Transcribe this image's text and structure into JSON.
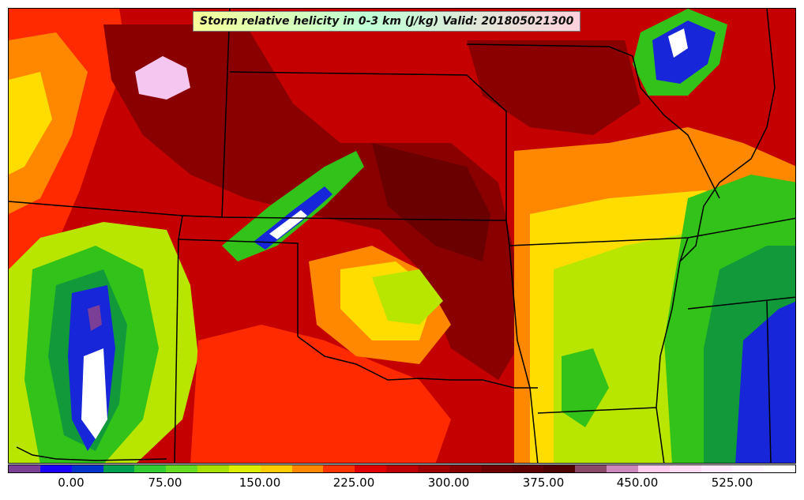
{
  "title": "Storm relative helicity in 0-3 km (J/kg) Valid: 201805021300",
  "colorbar": {
    "colors": [
      "#7b3f98",
      "#1a00ff",
      "#0033cc",
      "#00a050",
      "#33cc33",
      "#66dd22",
      "#a8e000",
      "#ddee00",
      "#ffcc00",
      "#ff8800",
      "#ff3300",
      "#e00000",
      "#c00000",
      "#a00000",
      "#880000",
      "#700000",
      "#600000",
      "#500000",
      "#8a4a66",
      "#cc88bb",
      "#ffccee",
      "#ffdcf4",
      "#ffeaff",
      "#fff4ff",
      "#ffffff"
    ],
    "tick_labels": [
      "0.00",
      "75.00",
      "150.00",
      "225.00",
      "300.00",
      "375.00",
      "450.00",
      "525.00"
    ]
  },
  "map": {
    "colors": {
      "background": "#c40000",
      "dark_red": "#8a0000",
      "darkest_red": "#6a0000",
      "red": "#ff2a00",
      "orange": "#ff8800",
      "yellow": "#ffdd00",
      "yellow_green": "#b8e600",
      "green": "#33c21a",
      "dark_green": "#129a3a",
      "blue": "#1626d8",
      "purple": "#7b3f98",
      "pink": "#f4c6f0",
      "white": "#ffffff",
      "border": "#000000"
    }
  }
}
